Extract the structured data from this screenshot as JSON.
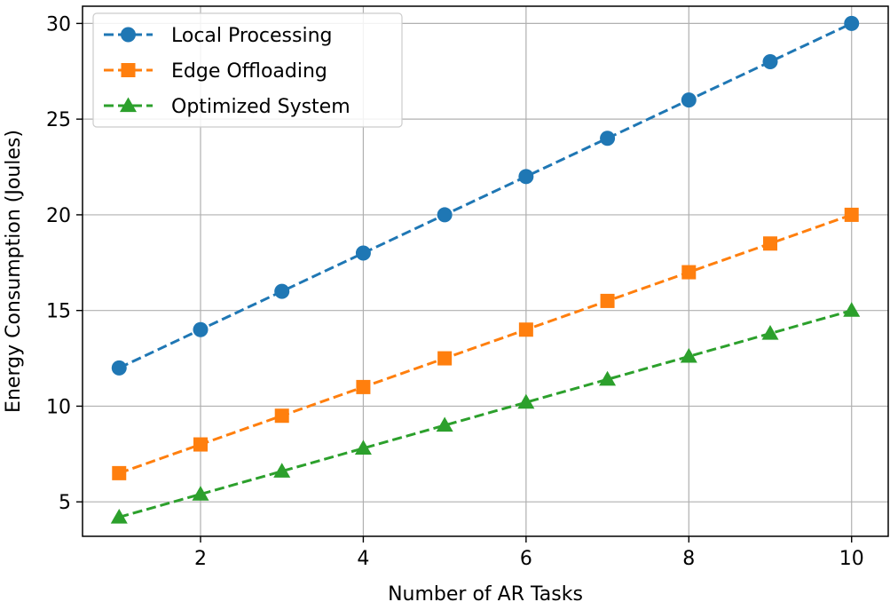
{
  "chart_data": {
    "type": "line",
    "title": "",
    "xlabel": "Number of AR Tasks",
    "ylabel": "Energy Consumption (Joules)",
    "xlim": [
      0.55,
      10.45
    ],
    "ylim": [
      3.2,
      30.9
    ],
    "xticks": [
      2,
      4,
      6,
      8,
      10
    ],
    "yticks": [
      5,
      10,
      15,
      20,
      25,
      30
    ],
    "grid": true,
    "legend_position": "top-left",
    "x": [
      1,
      2,
      3,
      4,
      5,
      6,
      7,
      8,
      9,
      10
    ],
    "series": [
      {
        "name": "Local Processing",
        "color": "#1f77b4",
        "marker": "circle",
        "linestyle": "dashed",
        "values": [
          12,
          14,
          16,
          18,
          20,
          22,
          24,
          26,
          28,
          30
        ]
      },
      {
        "name": "Edge Offloading",
        "color": "#ff7f0e",
        "marker": "square",
        "linestyle": "dashed",
        "values": [
          6.5,
          8,
          9.5,
          11,
          12.5,
          14,
          15.5,
          17,
          18.5,
          20
        ]
      },
      {
        "name": "Optimized System",
        "color": "#2ca02c",
        "marker": "triangle",
        "linestyle": "dashed",
        "values": [
          4.2,
          5.4,
          6.6,
          7.8,
          9.0,
          10.2,
          11.4,
          12.6,
          13.8,
          15.0
        ]
      }
    ]
  }
}
